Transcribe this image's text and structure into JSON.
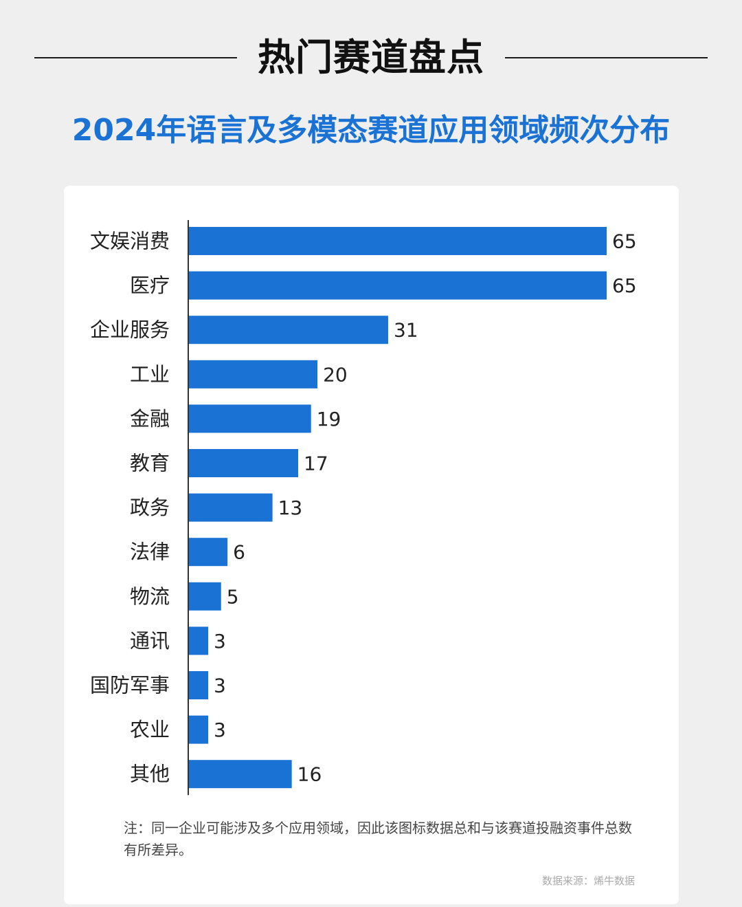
{
  "header": {
    "title": "热门赛道盘点"
  },
  "chart_data": {
    "type": "bar",
    "orientation": "horizontal",
    "title": "2024年语言及多模态赛道应用领域频次分布",
    "categories": [
      "文娱消费",
      "医疗",
      "企业服务",
      "工业",
      "金融",
      "教育",
      "政务",
      "法律",
      "物流",
      "通讯",
      "国防军事",
      "农业",
      "其他"
    ],
    "values": [
      65,
      65,
      31,
      20,
      19,
      17,
      13,
      6,
      5,
      3,
      3,
      3,
      16
    ],
    "bar_color": "#1a73d4",
    "data_labels": true,
    "grid": false,
    "xlim": [
      0,
      65
    ]
  },
  "footer": {
    "note": "注：同一企业可能涉及多个应用领域，因此该图标数据总和与该赛道投融资事件总数有所差异。",
    "source": "数据来源：烯牛数据"
  }
}
